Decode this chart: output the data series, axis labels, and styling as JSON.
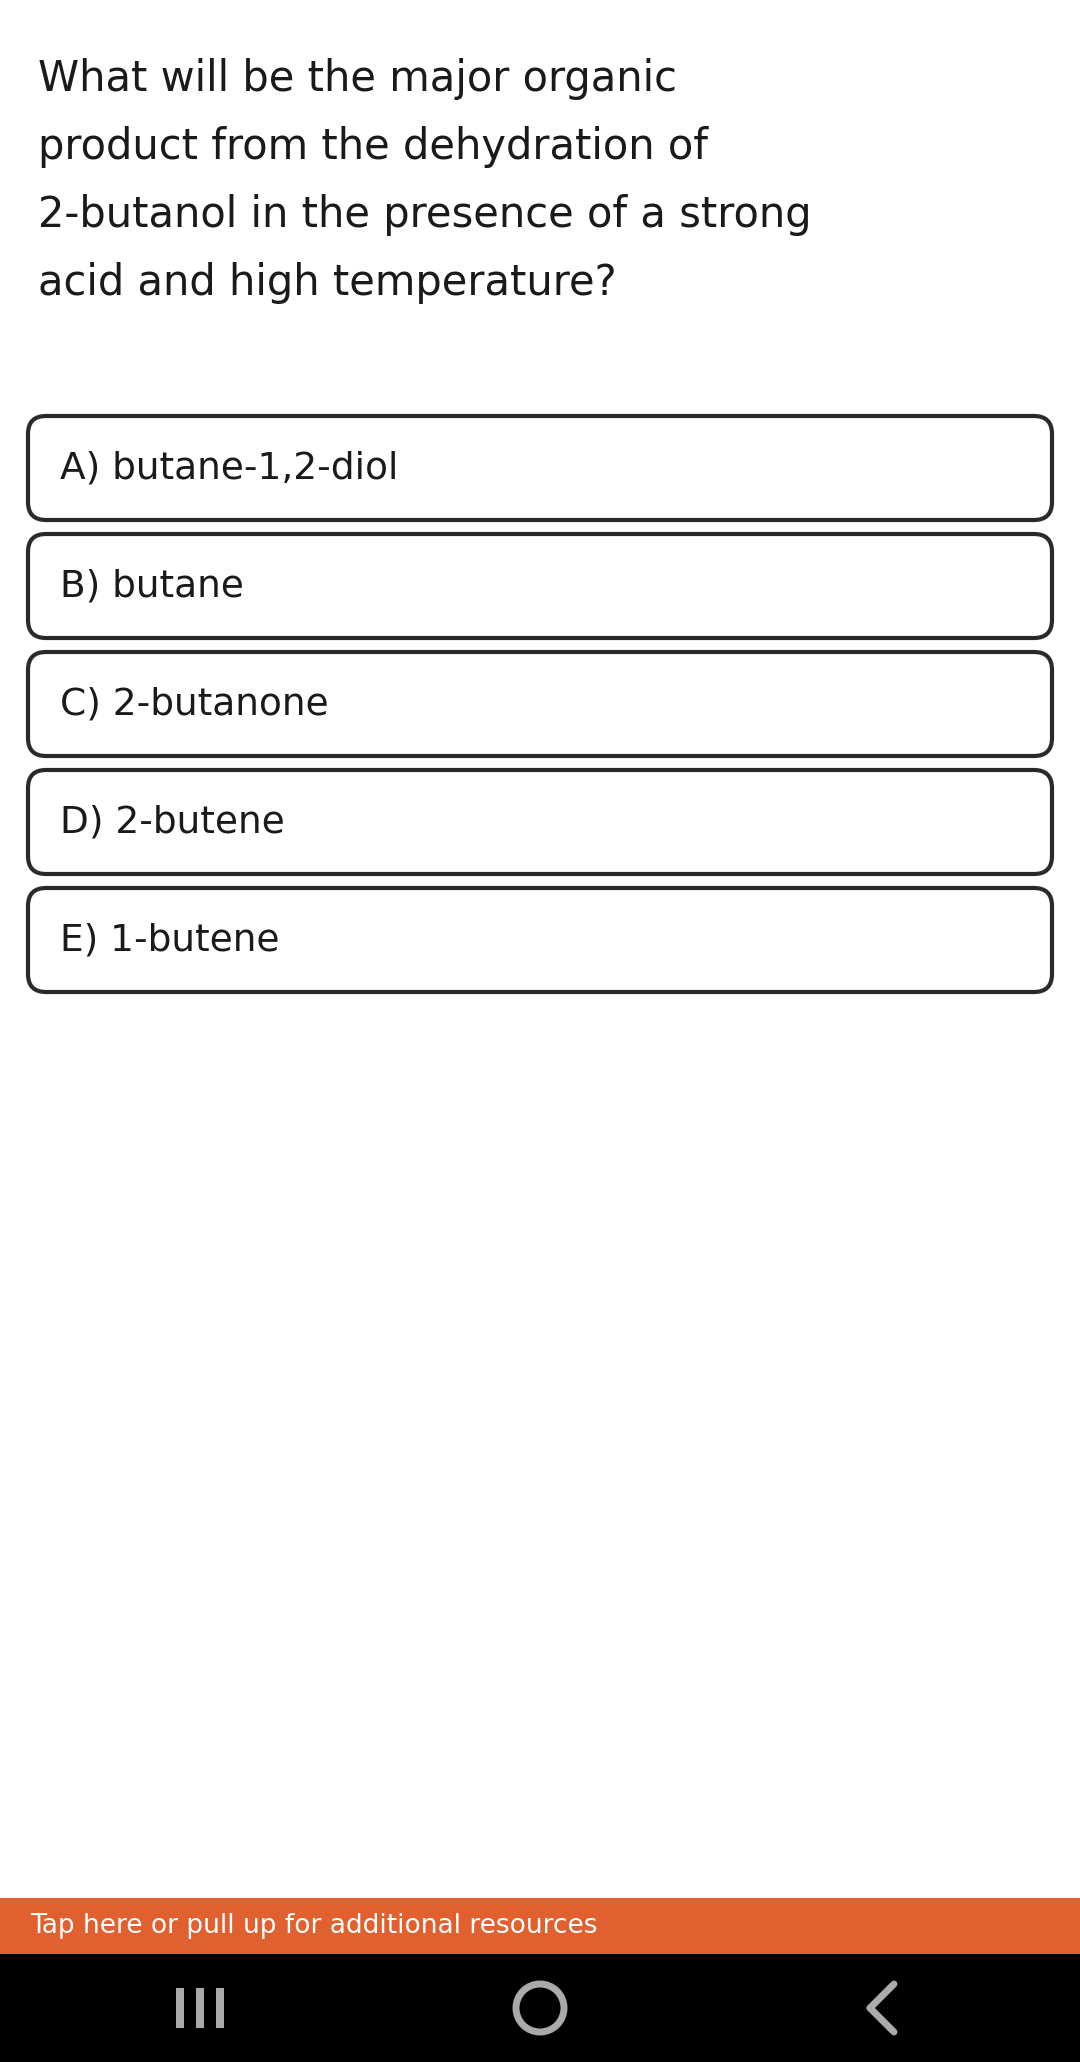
{
  "question_lines": [
    "What will be the major organic",
    "product from the dehydration of",
    "2-butanol in the presence of a strong",
    "acid and high temperature?"
  ],
  "options": [
    "A) butane-1,2-diol",
    "B) butane",
    "C) 2-butanone",
    "D) 2-butene",
    "E) 1-butene"
  ],
  "footer_text": "Tap here or pull up for additional resources",
  "bg_color": "#ffffff",
  "question_color": "#1a1a1a",
  "option_color": "#1a1a1a",
  "box_border_color": "#2a2a2a",
  "box_bg_color": "#ffffff",
  "footer_bg_color": "#e06030",
  "footer_text_color": "#ffffff",
  "navbar_bg_color": "#000000",
  "navbar_icon_color": "#aaaaaa",
  "question_fontsize": 30,
  "option_fontsize": 27,
  "footer_fontsize": 19,
  "fig_width": 10.8,
  "fig_height": 20.62
}
